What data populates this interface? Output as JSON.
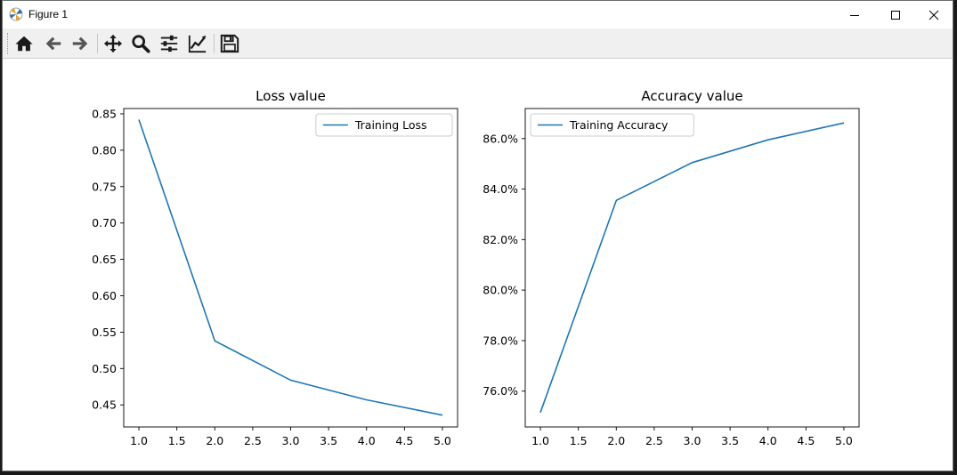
{
  "window": {
    "title": "Figure 1",
    "controls": [
      "minimize",
      "maximize",
      "close"
    ]
  },
  "toolbar": {
    "tools": [
      {
        "name": "home-icon",
        "tooltip": ""
      },
      {
        "name": "back-icon",
        "tooltip": ""
      },
      {
        "name": "forward-icon",
        "tooltip": ""
      },
      {
        "name": "pan-icon",
        "tooltip": ""
      },
      {
        "name": "zoom-icon",
        "tooltip": ""
      },
      {
        "name": "configure-subplots-icon",
        "tooltip": ""
      },
      {
        "name": "edit-axis-icon",
        "tooltip": ""
      },
      {
        "name": "save-icon",
        "tooltip": ""
      }
    ]
  },
  "colors": {
    "line": "#1f77b4",
    "icon": "#1a1a1a"
  },
  "chart_data": [
    {
      "type": "line",
      "title": "Loss value",
      "xlabel": "",
      "ylabel": "",
      "x": [
        1.0,
        2.0,
        3.0,
        4.0,
        5.0
      ],
      "series": [
        {
          "name": "Training Loss",
          "values": [
            0.842,
            0.538,
            0.484,
            0.457,
            0.436
          ]
        }
      ],
      "xlim": [
        0.8,
        5.2
      ],
      "ylim": [
        0.4197,
        0.8573
      ],
      "xticks": [
        "1.0",
        "1.5",
        "2.0",
        "2.5",
        "3.0",
        "3.5",
        "4.0",
        "4.5",
        "5.0"
      ],
      "yticks": [
        "0.45",
        "0.50",
        "0.55",
        "0.60",
        "0.65",
        "0.70",
        "0.75",
        "0.80",
        "0.85"
      ],
      "legend": "top-right",
      "grid": false
    },
    {
      "type": "line",
      "title": "Accuracy value",
      "xlabel": "",
      "ylabel": "",
      "x": [
        1.0,
        2.0,
        3.0,
        4.0,
        5.0
      ],
      "series": [
        {
          "name": "Training Accuracy",
          "values": [
            75.15,
            83.55,
            85.05,
            85.95,
            86.62
          ]
        }
      ],
      "xlim": [
        0.8,
        5.2
      ],
      "ylim": [
        74.58,
        87.19
      ],
      "xticks": [
        "1.0",
        "1.5",
        "2.0",
        "2.5",
        "3.0",
        "3.5",
        "4.0",
        "4.5",
        "5.0"
      ],
      "yticks": [
        "76.0%",
        "78.0%",
        "80.0%",
        "82.0%",
        "84.0%",
        "86.0%"
      ],
      "legend": "top-left",
      "grid": false
    }
  ]
}
